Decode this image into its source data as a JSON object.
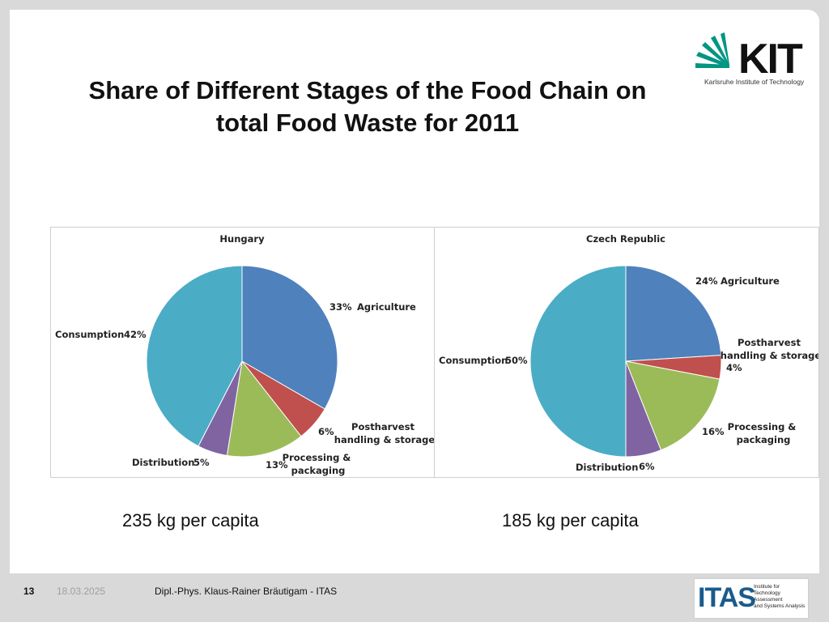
{
  "slide": {
    "title_lines": [
      "Share of Different Stages of the Food Chain on",
      "total Food Waste for 2011"
    ],
    "logo": {
      "word": "KIT",
      "subtitle": "Karlsruhe Institute of Technology"
    },
    "footer": {
      "page": "13",
      "date": "18.03.2025",
      "author": "Dipl.-Phys. Klaus-Rainer Bräutigam - ITAS",
      "itas_word": "ITAS",
      "itas_sub": [
        "Institute for",
        "Technology Assessment",
        "and Systems Analysis"
      ]
    },
    "per_capita": [
      "235 kg per capita",
      "185 kg per capita"
    ],
    "colors": {
      "agriculture": "#4f81bd",
      "postharvest": "#c0504d",
      "processing": "#9bbb59",
      "distribution": "#8064a2",
      "consumption": "#4bacc6"
    }
  },
  "chart_data": [
    {
      "type": "pie",
      "title": "Hungary",
      "slices": [
        {
          "label": "Agriculture",
          "value": 33,
          "value_label": "33%"
        },
        {
          "label": "Postharvest handling & storage",
          "value": 6,
          "value_label": "6%"
        },
        {
          "label": "Processing & packaging",
          "value": 13,
          "value_label": "13%"
        },
        {
          "label": "Distribution",
          "value": 5,
          "value_label": "5%"
        },
        {
          "label": "Consumption",
          "value": 42,
          "value_label": "42%"
        }
      ]
    },
    {
      "type": "pie",
      "title": "Czech Republic",
      "slices": [
        {
          "label": "Agriculture",
          "value": 24,
          "value_label": "24%"
        },
        {
          "label": "Postharvest handling & storage",
          "value": 4,
          "value_label": "4%"
        },
        {
          "label": "Processing & packaging",
          "value": 16,
          "value_label": "16%"
        },
        {
          "label": "Distribution",
          "value": 6,
          "value_label": "6%"
        },
        {
          "label": "Consumption",
          "value": 50,
          "value_label": "50%"
        }
      ]
    }
  ]
}
